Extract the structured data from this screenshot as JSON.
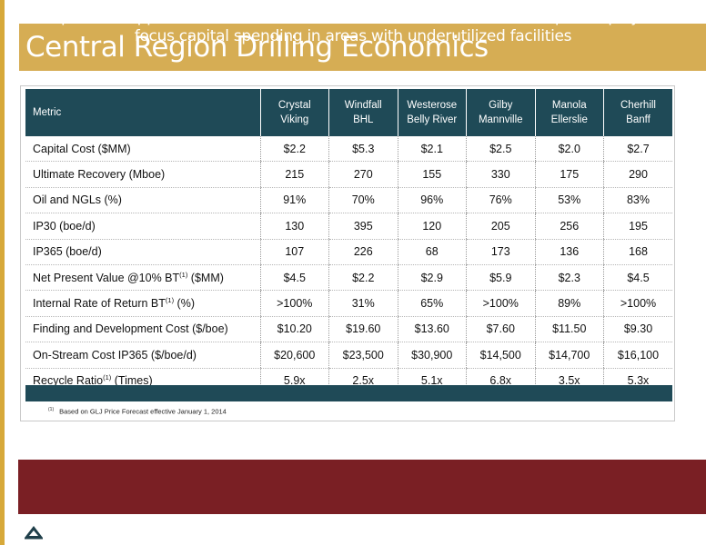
{
  "title": "Central Region Drilling Economics",
  "table": {
    "headers": [
      {
        "line1": "Metric",
        "line2": ""
      },
      {
        "line1": "Crystal",
        "line2": "Viking"
      },
      {
        "line1": "Windfall",
        "line2": "BHL"
      },
      {
        "line1": "Westerose",
        "line2": "Belly River"
      },
      {
        "line1": "Gilby",
        "line2": "Mannville"
      },
      {
        "line1": "Manola",
        "line2": "Ellerslie"
      },
      {
        "line1": "Cherhill",
        "line2": "Banff"
      }
    ],
    "rows": [
      {
        "metric": "Capital Cost ($MM)",
        "sup": "",
        "metric_suffix": "",
        "values": [
          "$2.2",
          "$5.3",
          "$2.1",
          "$2.5",
          "$2.0",
          "$2.7"
        ]
      },
      {
        "metric": "Ultimate Recovery (Mboe)",
        "sup": "",
        "metric_suffix": "",
        "values": [
          "215",
          "270",
          "155",
          "330",
          "175",
          "290"
        ]
      },
      {
        "metric": "Oil and NGLs (%)",
        "sup": "",
        "metric_suffix": "",
        "values": [
          "91%",
          "70%",
          "96%",
          "76%",
          "53%",
          "83%"
        ]
      },
      {
        "metric": "IP30 (boe/d)",
        "sup": "",
        "metric_suffix": "",
        "values": [
          "130",
          "395",
          "120",
          "205",
          "256",
          "195"
        ]
      },
      {
        "metric": "IP365 (boe/d)",
        "sup": "",
        "metric_suffix": "",
        "values": [
          "107",
          "226",
          "68",
          "173",
          "136",
          "168"
        ]
      },
      {
        "metric": "Net Present Value @10% BT",
        "sup": "(1)",
        "metric_suffix": " ($MM)",
        "values": [
          "$4.5",
          "$2.2",
          "$2.9",
          "$5.9",
          "$2.3",
          "$4.5"
        ]
      },
      {
        "metric": "Internal Rate of Return BT",
        "sup": "(1)",
        "metric_suffix": " (%)",
        "values": [
          ">100%",
          "31%",
          "65%",
          ">100%",
          "89%",
          ">100%"
        ]
      },
      {
        "metric": "Finding and Development Cost ($/boe)",
        "sup": "",
        "metric_suffix": "",
        "values": [
          "$10.20",
          "$19.60",
          "$13.60",
          "$7.60",
          "$11.50",
          "$9.30"
        ]
      },
      {
        "metric": "On-Stream Cost IP365 ($/boe/d)",
        "sup": "",
        "metric_suffix": "",
        "values": [
          "$20,600",
          "$23,500",
          "$30,900",
          "$14,500",
          "$14,700",
          "$16,100"
        ]
      },
      {
        "metric": "Recycle Ratio",
        "sup": "(1)",
        "metric_suffix": " (Times)",
        "values": [
          "5.9x",
          "2.5x",
          "5.1x",
          "6.8x",
          "3.5x",
          "5.3x"
        ]
      }
    ]
  },
  "footnote": {
    "marker": "(1)",
    "text": "Based on GLJ Price Forecast effective January 1, 2014"
  },
  "banner": {
    "line1": "Our portfolio approach allows us to reduce concentration risk on one specific play, and",
    "line2": "focus capital spending in areas with underutilized facilities"
  },
  "colors": {
    "accent_gold": "#d6ad54",
    "header_teal": "#1f4a57",
    "banner_maroon": "#7a1f24"
  },
  "icons": {
    "logo": "company-logo-icon"
  }
}
